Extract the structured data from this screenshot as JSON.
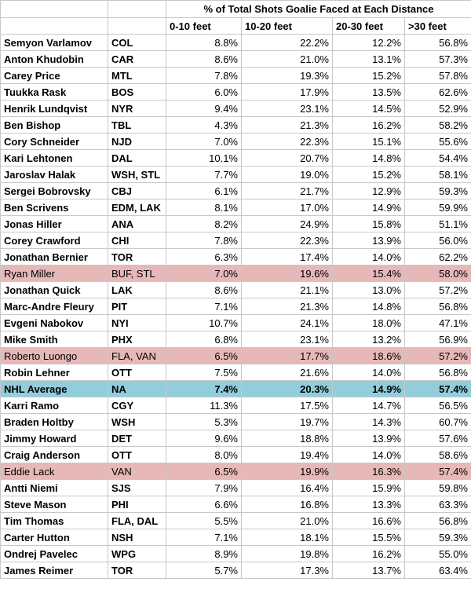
{
  "header": {
    "title": "% of Total Shots Goalie Faced at Each Distance",
    "columns": [
      "0-10 feet",
      "10-20 feet",
      "20-30 feet",
      ">30 feet"
    ]
  },
  "rows": [
    {
      "name": "Semyon Varlamov",
      "team": "COL",
      "values": [
        "8.8%",
        "22.2%",
        "12.2%",
        "56.8%"
      ],
      "style": "normal"
    },
    {
      "name": "Anton Khudobin",
      "team": "CAR",
      "values": [
        "8.6%",
        "21.0%",
        "13.1%",
        "57.3%"
      ],
      "style": "normal"
    },
    {
      "name": "Carey Price",
      "team": "MTL",
      "values": [
        "7.8%",
        "19.3%",
        "15.2%",
        "57.8%"
      ],
      "style": "normal"
    },
    {
      "name": "Tuukka Rask",
      "team": "BOS",
      "values": [
        "6.0%",
        "17.9%",
        "13.5%",
        "62.6%"
      ],
      "style": "normal"
    },
    {
      "name": "Henrik Lundqvist",
      "team": "NYR",
      "values": [
        "9.4%",
        "23.1%",
        "14.5%",
        "52.9%"
      ],
      "style": "normal"
    },
    {
      "name": "Ben Bishop",
      "team": "TBL",
      "values": [
        "4.3%",
        "21.3%",
        "16.2%",
        "58.2%"
      ],
      "style": "normal"
    },
    {
      "name": "Cory Schneider",
      "team": "NJD",
      "values": [
        "7.0%",
        "22.3%",
        "15.1%",
        "55.6%"
      ],
      "style": "normal"
    },
    {
      "name": "Kari Lehtonen",
      "team": "DAL",
      "values": [
        "10.1%",
        "20.7%",
        "14.8%",
        "54.4%"
      ],
      "style": "normal"
    },
    {
      "name": "Jaroslav Halak",
      "team": "WSH, STL",
      "values": [
        "7.7%",
        "19.0%",
        "15.2%",
        "58.1%"
      ],
      "style": "normal"
    },
    {
      "name": "Sergei Bobrovsky",
      "team": "CBJ",
      "values": [
        "6.1%",
        "21.7%",
        "12.9%",
        "59.3%"
      ],
      "style": "normal"
    },
    {
      "name": "Ben Scrivens",
      "team": "EDM, LAK",
      "values": [
        "8.1%",
        "17.0%",
        "14.9%",
        "59.9%"
      ],
      "style": "normal"
    },
    {
      "name": "Jonas Hiller",
      "team": "ANA",
      "values": [
        "8.2%",
        "24.9%",
        "15.8%",
        "51.1%"
      ],
      "style": "normal"
    },
    {
      "name": "Corey Crawford",
      "team": "CHI",
      "values": [
        "7.8%",
        "22.3%",
        "13.9%",
        "56.0%"
      ],
      "style": "normal"
    },
    {
      "name": "Jonathan Bernier",
      "team": "TOR",
      "values": [
        "6.3%",
        "17.4%",
        "14.0%",
        "62.2%"
      ],
      "style": "normal"
    },
    {
      "name": "Ryan Miller",
      "team": "BUF, STL",
      "values": [
        "7.0%",
        "19.6%",
        "15.4%",
        "58.0%"
      ],
      "style": "pink"
    },
    {
      "name": "Jonathan Quick",
      "team": "LAK",
      "values": [
        "8.6%",
        "21.1%",
        "13.0%",
        "57.2%"
      ],
      "style": "normal"
    },
    {
      "name": "Marc-Andre Fleury",
      "team": "PIT",
      "values": [
        "7.1%",
        "21.3%",
        "14.8%",
        "56.8%"
      ],
      "style": "normal"
    },
    {
      "name": "Evgeni Nabokov",
      "team": "NYI",
      "values": [
        "10.7%",
        "24.1%",
        "18.0%",
        "47.1%"
      ],
      "style": "normal"
    },
    {
      "name": "Mike Smith",
      "team": "PHX",
      "values": [
        "6.8%",
        "23.1%",
        "13.2%",
        "56.9%"
      ],
      "style": "normal"
    },
    {
      "name": "Roberto Luongo",
      "team": "FLA, VAN",
      "values": [
        "6.5%",
        "17.7%",
        "18.6%",
        "57.2%"
      ],
      "style": "pink"
    },
    {
      "name": "Robin Lehner",
      "team": "OTT",
      "values": [
        "7.5%",
        "21.6%",
        "14.0%",
        "56.8%"
      ],
      "style": "normal"
    },
    {
      "name": "NHL Average",
      "team": "NA",
      "values": [
        "7.4%",
        "20.3%",
        "14.9%",
        "57.4%"
      ],
      "style": "blue"
    },
    {
      "name": "Karri Ramo",
      "team": "CGY",
      "values": [
        "11.3%",
        "17.5%",
        "14.7%",
        "56.5%"
      ],
      "style": "normal"
    },
    {
      "name": "Braden Holtby",
      "team": "WSH",
      "values": [
        "5.3%",
        "19.7%",
        "14.3%",
        "60.7%"
      ],
      "style": "normal"
    },
    {
      "name": "Jimmy Howard",
      "team": "DET",
      "values": [
        "9.6%",
        "18.8%",
        "13.9%",
        "57.6%"
      ],
      "style": "normal"
    },
    {
      "name": "Craig Anderson",
      "team": "OTT",
      "values": [
        "8.0%",
        "19.4%",
        "14.0%",
        "58.6%"
      ],
      "style": "normal"
    },
    {
      "name": "Eddie Lack",
      "team": "VAN",
      "values": [
        "6.5%",
        "19.9%",
        "16.3%",
        "57.4%"
      ],
      "style": "pink"
    },
    {
      "name": "Antti Niemi",
      "team": "SJS",
      "values": [
        "7.9%",
        "16.4%",
        "15.9%",
        "59.8%"
      ],
      "style": "normal"
    },
    {
      "name": "Steve Mason",
      "team": "PHI",
      "values": [
        "6.6%",
        "16.8%",
        "13.3%",
        "63.3%"
      ],
      "style": "normal"
    },
    {
      "name": "Tim Thomas",
      "team": "FLA, DAL",
      "values": [
        "5.5%",
        "21.0%",
        "16.6%",
        "56.8%"
      ],
      "style": "normal"
    },
    {
      "name": "Carter Hutton",
      "team": "NSH",
      "values": [
        "7.1%",
        "18.1%",
        "15.5%",
        "59.3%"
      ],
      "style": "normal"
    },
    {
      "name": "Ondrej Pavelec",
      "team": "WPG",
      "values": [
        "8.9%",
        "19.8%",
        "16.2%",
        "55.0%"
      ],
      "style": "normal"
    },
    {
      "name": "James Reimer",
      "team": "TOR",
      "values": [
        "5.7%",
        "17.3%",
        "13.7%",
        "63.4%"
      ],
      "style": "normal"
    }
  ],
  "colors": {
    "highlight_pink": "#e6b8b7",
    "highlight_blue": "#92cddc",
    "grid": "#c8c8c8"
  }
}
